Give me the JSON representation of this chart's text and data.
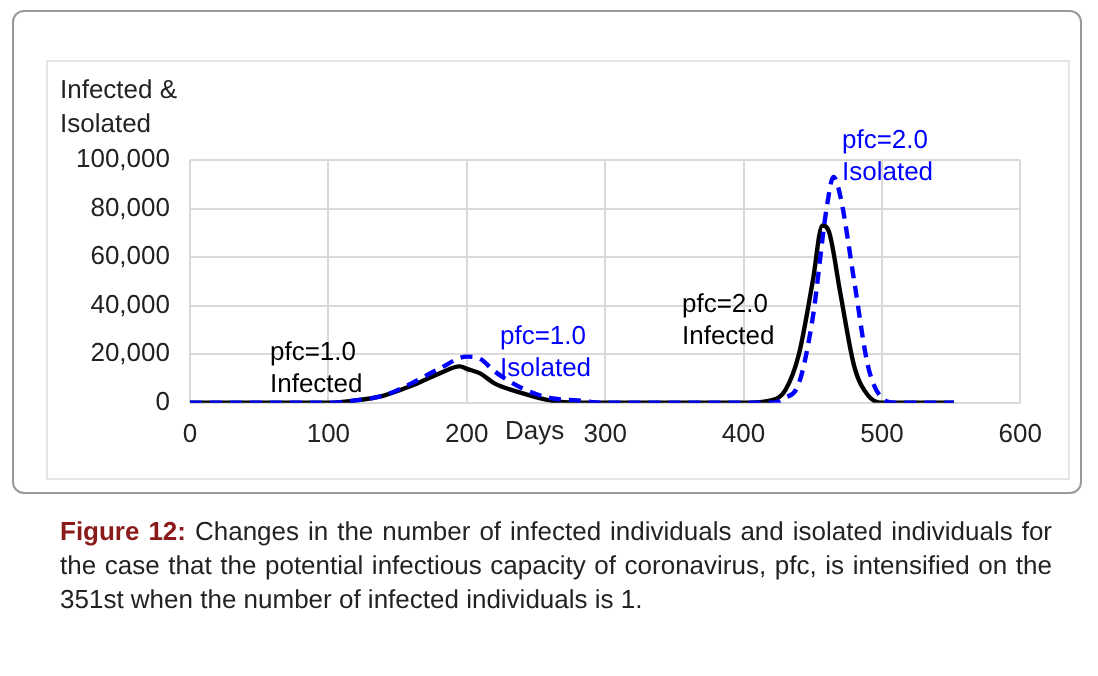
{
  "chart_data": {
    "type": "line",
    "xlabel": "Days",
    "ylabel": "Infected & Isolated",
    "xlim": [
      0,
      600
    ],
    "xticks": [
      0,
      100,
      200,
      300,
      400,
      500,
      600
    ],
    "ylim": [
      0,
      100000
    ],
    "yticks": [
      0,
      {
        "value": 20000,
        "label": "20,000"
      },
      {
        "value": 40000,
        "label": "40,000"
      },
      {
        "value": 60000,
        "label": "60,000"
      },
      {
        "value": 80000,
        "label": "80,000"
      },
      {
        "value": 100000,
        "label": "100,000"
      }
    ],
    "grid": true,
    "legend": false,
    "marker": "none",
    "series": [
      {
        "color": "#000000",
        "line_style": "solid",
        "x": [
          0,
          50,
          100,
          120,
          140,
          160,
          180,
          195,
          200,
          210,
          220,
          240,
          260,
          280,
          300,
          350,
          400,
          420,
          430,
          440,
          450,
          457,
          462,
          470,
          480,
          490,
          500,
          520,
          552
        ],
        "values": [
          0,
          0,
          0,
          1000,
          3000,
          7000,
          12000,
          15000,
          14000,
          12000,
          8000,
          4000,
          1000,
          0,
          0,
          0,
          0,
          1000,
          5000,
          20000,
          50000,
          73000,
          70000,
          45000,
          15000,
          3000,
          0,
          0,
          0
        ]
      },
      {
        "color": "#0000ff",
        "line_style": "dashed",
        "x": [
          0,
          50,
          100,
          120,
          140,
          160,
          180,
          200,
          210,
          220,
          240,
          260,
          280,
          300,
          350,
          400,
          420,
          430,
          440,
          450,
          460,
          465,
          470,
          480,
          490,
          500,
          510,
          520,
          552
        ],
        "values": [
          0,
          0,
          0,
          1000,
          3000,
          8000,
          14000,
          19000,
          18000,
          13000,
          6000,
          2000,
          1000,
          0,
          0,
          0,
          0,
          2000,
          8000,
          35000,
          80000,
          93000,
          85000,
          50000,
          15000,
          2000,
          0,
          0,
          0
        ]
      }
    ],
    "annotations": [
      "pfc=1.0 Infected",
      "pfc=1.0 Isolated",
      "pfc=2.0 Infected",
      "pfc=2.0 Isolated",
      "Figure 12: Changes in the number of infected individuals and isolated individuals for the case that the potential infectious capacity of coronavirus, pfc, is intensified on the 351st when the number of infected individuals is 1."
    ]
  }
}
